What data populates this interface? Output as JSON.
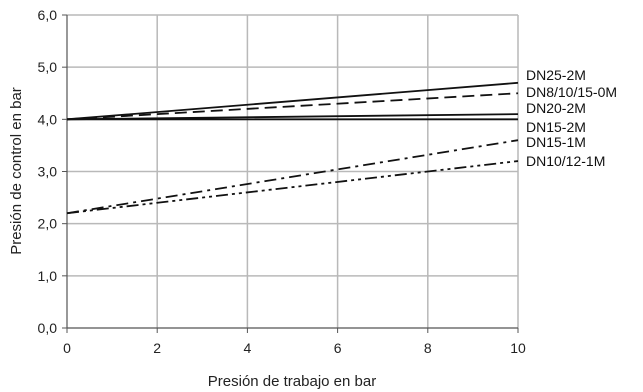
{
  "chart_data": {
    "type": "line",
    "xlabel": "Presión de trabajo en bar",
    "ylabel": "Presión de control en bar",
    "xlim": [
      0,
      10
    ],
    "ylim": [
      0,
      6
    ],
    "grid": true,
    "x_ticks": [
      "0",
      "2",
      "4",
      "6",
      "8",
      "10"
    ],
    "y_ticks": [
      "0,0",
      "1,0",
      "2,0",
      "3,0",
      "4,0",
      "5,0",
      "6,0"
    ],
    "series": [
      {
        "name": "DN25-2M",
        "x": [
          0,
          10
        ],
        "y": [
          4.0,
          4.7
        ],
        "dash": "solid",
        "color": "#111111"
      },
      {
        "name": "DN8/10/15-0M",
        "x": [
          0,
          10
        ],
        "y": [
          4.0,
          4.5
        ],
        "dash": "dashed",
        "color": "#111111"
      },
      {
        "name": "DN20-2M",
        "x": [
          0,
          10
        ],
        "y": [
          4.0,
          4.1
        ],
        "dash": "solid",
        "color": "#111111"
      },
      {
        "name": "DN15-2M",
        "x": [
          0,
          10
        ],
        "y": [
          4.0,
          4.0
        ],
        "dash": "solid",
        "color": "#111111"
      },
      {
        "name": "DN15-1M",
        "x": [
          0,
          10
        ],
        "y": [
          2.2,
          3.6
        ],
        "dash": "dashdot",
        "color": "#111111"
      },
      {
        "name": "DN10/12-1M",
        "x": [
          0,
          10
        ],
        "y": [
          2.2,
          3.2
        ],
        "dash": "dashdotdot",
        "color": "#111111"
      }
    ]
  }
}
